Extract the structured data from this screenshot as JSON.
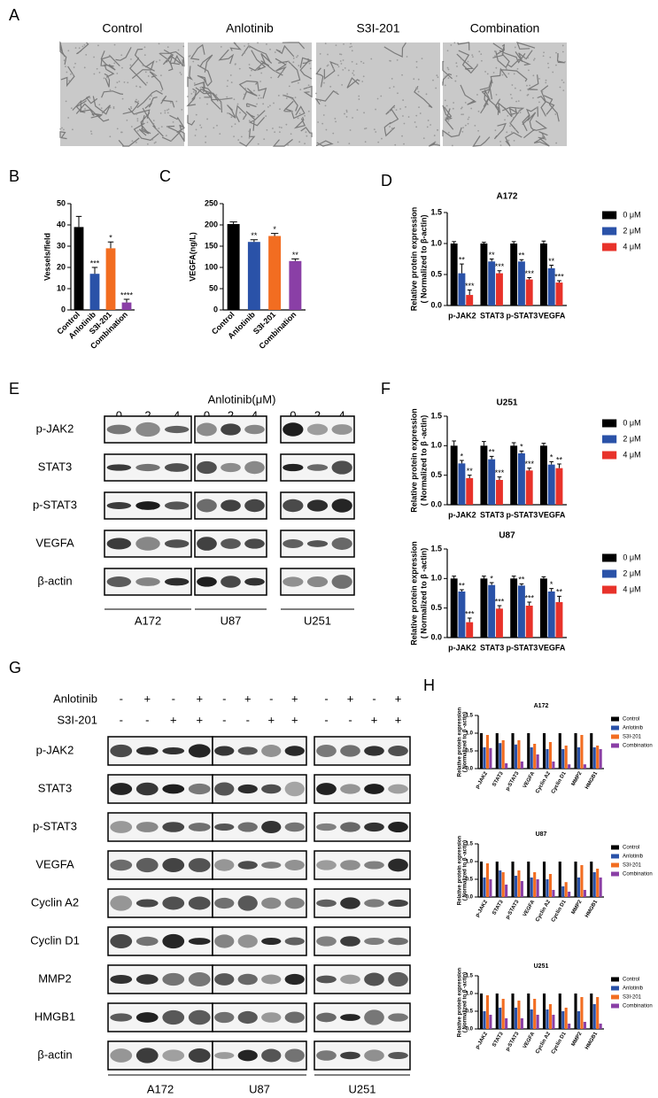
{
  "panel_labels": [
    "A",
    "B",
    "C",
    "D",
    "E",
    "F",
    "G",
    "H"
  ],
  "micrographs": [
    "Control",
    "Anlotinib",
    "S3I-201",
    "Combination"
  ],
  "blot_e": {
    "header": "Anlotinib(μM)",
    "doses": [
      "0",
      "2",
      "4"
    ],
    "proteins": [
      "p-JAK2",
      "STAT3",
      "p-STAT3",
      "VEGFA",
      "β-actin"
    ],
    "cell_lines": [
      "A172",
      "U87",
      "U251"
    ]
  },
  "blot_g": {
    "treatments": [
      {
        "name": "Anlotinib",
        "signs": [
          "-",
          "+",
          "-",
          "+"
        ]
      },
      {
        "name": "S3I-201",
        "signs": [
          "-",
          "-",
          "+",
          "+"
        ]
      }
    ],
    "proteins": [
      "p-JAK2",
      "STAT3",
      "p-STAT3",
      "VEGFA",
      "Cyclin A2",
      "Cyclin D1",
      "MMP2",
      "HMGB1",
      "β-actin"
    ],
    "cell_lines": [
      "A172",
      "U87",
      "U251"
    ]
  },
  "chart_data": [
    {
      "type": "bar",
      "ylabel": [
        "Vessels/field"
      ],
      "categories": [
        "Control",
        "Anlotinib",
        "S3I-201",
        "Combination"
      ],
      "values": [
        39,
        17,
        29,
        3.5
      ],
      "errors": [
        5,
        3,
        3,
        1.5
      ],
      "significance": [
        null,
        "***",
        "*",
        "****"
      ],
      "colors": [
        "#000000",
        "#2a52a8",
        "#f26d21",
        "#8a3fa6"
      ],
      "ylim": [
        0,
        50
      ],
      "yticks": [
        0,
        10,
        20,
        30,
        40,
        50
      ]
    },
    {
      "type": "bar",
      "ylabel": [
        "VEGFA(ng/L)"
      ],
      "categories": [
        "Control",
        "Anlotinib",
        "S3I-201",
        "Combination"
      ],
      "values": [
        202,
        160,
        174,
        115
      ],
      "errors": [
        5,
        5,
        6,
        5
      ],
      "significance": [
        null,
        "**",
        "*",
        "**"
      ],
      "colors": [
        "#000000",
        "#2a52a8",
        "#f26d21",
        "#8a3fa6"
      ],
      "ylim": [
        0,
        250
      ],
      "yticks": [
        0,
        50,
        100,
        150,
        200,
        250
      ]
    },
    {
      "type": "grouped-bar",
      "title": "A172",
      "ylabel": [
        "Relative protein expression",
        "( Normalized to β-actin)"
      ],
      "categories": [
        "p-JAK2",
        "STAT3",
        "p-STAT3",
        "VEGFA"
      ],
      "series": [
        {
          "name": "0 μM",
          "color": "#000000",
          "values": [
            1,
            1,
            1,
            1
          ],
          "errors": [
            0.03,
            0.02,
            0.03,
            0.04
          ]
        },
        {
          "name": "2 μM",
          "color": "#2a52a8",
          "values": [
            0.52,
            0.71,
            0.71,
            0.6
          ],
          "errors": [
            0.15,
            0.04,
            0.03,
            0.05
          ],
          "significance": [
            "**",
            "**",
            "**",
            "**"
          ]
        },
        {
          "name": "4 μM",
          "color": "#e8322a",
          "values": [
            0.17,
            0.52,
            0.42,
            0.37
          ],
          "errors": [
            0.08,
            0.04,
            0.03,
            0.03
          ],
          "significance": [
            "***",
            "***",
            "***",
            "***"
          ]
        }
      ],
      "ylim": [
        0,
        1.5
      ],
      "yticks": [
        {
          "value": 0,
          "label": "0.0"
        },
        0.5,
        {
          "value": 1,
          "label": "1.0"
        },
        1.5
      ]
    },
    {
      "type": "grouped-bar",
      "title": "U251",
      "ylabel": [
        "Relative protein expression",
        "( Normalized to β -actin)"
      ],
      "categories": [
        "p-JAK2",
        "STAT3",
        "p-STAT3",
        "VEGFA"
      ],
      "series": [
        {
          "name": "0 μM",
          "color": "#000000",
          "values": [
            1,
            1,
            1,
            1
          ],
          "errors": [
            0.08,
            0.07,
            0.05,
            0.04
          ]
        },
        {
          "name": "2 μM",
          "color": "#2a52a8",
          "values": [
            0.7,
            0.77,
            0.87,
            0.68
          ],
          "errors": [
            0.05,
            0.05,
            0.04,
            0.05
          ],
          "significance": [
            "*",
            "**",
            "*",
            "*"
          ]
        },
        {
          "name": "4 μM",
          "color": "#e8322a",
          "values": [
            0.45,
            0.42,
            0.58,
            0.62
          ],
          "errors": [
            0.05,
            0.05,
            0.04,
            0.07
          ],
          "significance": [
            "**",
            "***",
            "***",
            "**"
          ]
        }
      ],
      "ylim": [
        0,
        1.5
      ],
      "yticks": [
        {
          "value": 0,
          "label": "0.0"
        },
        0.5,
        {
          "value": 1,
          "label": "1.0"
        },
        1.5
      ]
    },
    {
      "type": "grouped-bar",
      "title": "U87",
      "ylabel": [
        "Relative protein expression",
        "( Normalized to β -actin)"
      ],
      "categories": [
        "p-JAK2",
        "STAT3",
        "p-STAT3",
        "VEGFA"
      ],
      "series": [
        {
          "name": "0 μM",
          "color": "#000000",
          "values": [
            1,
            1,
            1,
            1
          ],
          "errors": [
            0.04,
            0.04,
            0.04,
            0.03
          ]
        },
        {
          "name": "2 μM",
          "color": "#2a52a8",
          "values": [
            0.78,
            0.89,
            0.88,
            0.78
          ],
          "errors": [
            0.03,
            0.04,
            0.03,
            0.05
          ],
          "significance": [
            "**",
            "*",
            "**",
            "*"
          ]
        },
        {
          "name": "4 μM",
          "color": "#e8322a",
          "values": [
            0.26,
            0.49,
            0.54,
            0.6
          ],
          "errors": [
            0.07,
            0.05,
            0.06,
            0.1
          ],
          "significance": [
            "***",
            "***",
            "***",
            "**"
          ]
        }
      ],
      "ylim": [
        0,
        1.5
      ],
      "yticks": [
        {
          "value": 0,
          "label": "0.0"
        },
        0.5,
        {
          "value": 1,
          "label": "1.0"
        },
        1.5
      ]
    },
    {
      "type": "grouped-bar",
      "title": "A172",
      "ylabel": [
        "Relative protein expression",
        "( Normalized to β -actin)"
      ],
      "categories": [
        "p-JAK2",
        "STAT3",
        "p-STAT3",
        "VEGFA",
        "Cyclin A2",
        "Cyclin D1",
        "MMP2",
        "HMGB1"
      ],
      "series": [
        {
          "name": "Control",
          "color": "#000000",
          "values": [
            1,
            1,
            1,
            1,
            1,
            1,
            1,
            1
          ]
        },
        {
          "name": "Anlotinib",
          "color": "#2a52a8",
          "values": [
            0.6,
            0.72,
            0.68,
            0.6,
            0.55,
            0.55,
            0.6,
            0.6
          ]
        },
        {
          "name": "S3I-201",
          "color": "#f26d21",
          "values": [
            0.95,
            0.8,
            0.8,
            0.7,
            0.75,
            0.65,
            0.95,
            0.65
          ]
        },
        {
          "name": "Combination",
          "color": "#8a3fa6",
          "values": [
            0.58,
            0.15,
            0.2,
            0.4,
            0.2,
            0.12,
            0.12,
            0.55
          ]
        }
      ],
      "ylim": [
        0,
        1.5
      ],
      "yticks": [
        {
          "value": 0,
          "label": "0.0"
        },
        0.5,
        {
          "value": 1,
          "label": "1.0"
        },
        1.5
      ]
    },
    {
      "type": "grouped-bar",
      "title": "U87",
      "ylabel": [
        "Relative protein expression",
        "( Normalized to β -actin)"
      ],
      "categories": [
        "p-JAK2",
        "STAT3",
        "p-STAT3",
        "VEGFA",
        "Cyclin A2",
        "Cyclin D1",
        "MMP2",
        "HMGB1"
      ],
      "series": [
        {
          "name": "Control",
          "color": "#000000",
          "values": [
            1,
            1,
            1,
            1,
            1,
            1,
            1,
            1
          ]
        },
        {
          "name": "Anlotinib",
          "color": "#2a52a8",
          "values": [
            0.55,
            0.75,
            0.6,
            0.55,
            0.5,
            0.3,
            0.55,
            0.7
          ]
        },
        {
          "name": "S3I-201",
          "color": "#f26d21",
          "values": [
            0.95,
            0.7,
            0.75,
            0.7,
            0.65,
            0.42,
            0.9,
            0.8
          ]
        },
        {
          "name": "Combination",
          "color": "#8a3fa6",
          "values": [
            0.5,
            0.35,
            0.45,
            0.5,
            0.2,
            0.15,
            0.2,
            0.55
          ]
        }
      ],
      "ylim": [
        0,
        1.5
      ],
      "yticks": [
        {
          "value": 0,
          "label": "0.0"
        },
        0.5,
        {
          "value": 1,
          "label": "1.0"
        },
        1.5
      ]
    },
    {
      "type": "grouped-bar",
      "title": "U251",
      "ylabel": [
        "Relative protein expression",
        "( Normalized to β -actin)"
      ],
      "categories": [
        "p-JAK2",
        "STAT3",
        "p-STAT3",
        "VEGFA",
        "Cyclin A2",
        "Cyclin D1",
        "MMP2",
        "HMGB1"
      ],
      "series": [
        {
          "name": "Control",
          "color": "#000000",
          "values": [
            1,
            1,
            1,
            1,
            1,
            1,
            1,
            1
          ]
        },
        {
          "name": "Anlotinib",
          "color": "#2a52a8",
          "values": [
            0.5,
            0.6,
            0.6,
            0.55,
            0.55,
            0.5,
            0.5,
            0.7
          ]
        },
        {
          "name": "S3I-201",
          "color": "#f26d21",
          "values": [
            0.95,
            0.85,
            0.8,
            0.85,
            0.7,
            0.6,
            0.9,
            0.9
          ]
        },
        {
          "name": "Combination",
          "color": "#8a3fa6",
          "values": [
            0.4,
            0.3,
            0.3,
            0.4,
            0.4,
            0.15,
            0.2,
            0.15
          ]
        }
      ],
      "ylim": [
        0,
        1.5
      ],
      "yticks": [
        {
          "value": 0,
          "label": "0.0"
        },
        0.5,
        {
          "value": 1,
          "label": "1.0"
        },
        1.5
      ]
    }
  ]
}
